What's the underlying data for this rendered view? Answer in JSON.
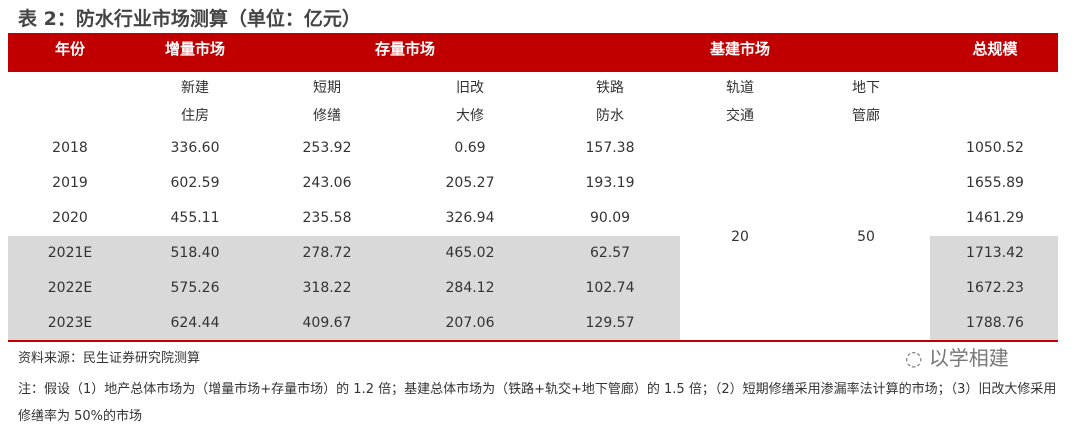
{
  "title": "表 2：防水行业市场测算（单位：亿元）",
  "header": {
    "year": "年份",
    "incremental": "增量市场",
    "stock": "存量市场",
    "infrastructure": "基建市场",
    "total": "总规模"
  },
  "subheaders": [
    {
      "l1": "新建",
      "l2": "住房"
    },
    {
      "l1": "短期",
      "l2": "修缮"
    },
    {
      "l1": "旧改",
      "l2": "大修"
    },
    {
      "l1": "铁路",
      "l2": "防水"
    },
    {
      "l1": "轨道",
      "l2": "交通"
    },
    {
      "l1": "地下",
      "l2": "管廊"
    }
  ],
  "rows": [
    {
      "year": "2018",
      "new_housing": "336.60",
      "short_repair": "253.92",
      "renovation": "0.69",
      "railway": "157.38",
      "total": "1050.52"
    },
    {
      "year": "2019",
      "new_housing": "602.59",
      "short_repair": "243.06",
      "renovation": "205.27",
      "railway": "193.19",
      "total": "1655.89"
    },
    {
      "year": "2020",
      "new_housing": "455.11",
      "short_repair": "235.58",
      "renovation": "326.94",
      "railway": "90.09",
      "total": "1461.29"
    },
    {
      "year": "2021E",
      "new_housing": "518.40",
      "short_repair": "278.72",
      "renovation": "465.02",
      "railway": "62.57",
      "total": "1713.42"
    },
    {
      "year": "2022E",
      "new_housing": "575.26",
      "short_repair": "318.22",
      "renovation": "284.12",
      "railway": "102.74",
      "total": "1672.23"
    },
    {
      "year": "2023E",
      "new_housing": "624.44",
      "short_repair": "409.67",
      "renovation": "207.06",
      "railway": "129.57",
      "total": "1788.76"
    }
  ],
  "merged": {
    "rail_transit": "20",
    "utility_tunnel": "50"
  },
  "source": "资料来源：民生证券研究院测算",
  "note": "注：假设（1）地产总体市场为（增量市场+存量市场）的 1.2 倍；基建总体市场为（铁路+轨交+地下管廊）的 1.5 倍；（2）短期修缮采用渗漏率法计算的市场；（3）旧改大修采用修缮率为 50%的市场",
  "watermark": "以学相建"
}
